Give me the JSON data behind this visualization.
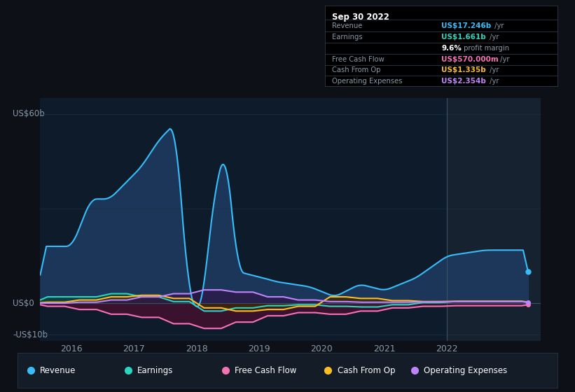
{
  "background_color": "#0d1117",
  "plot_bg_color": "#0d1b2a",
  "y_label_top": "US$60b",
  "y_label_zero": "US$0",
  "y_label_bottom": "-US$10b",
  "x_ticks": [
    "2016",
    "2017",
    "2018",
    "2019",
    "2020",
    "2021",
    "2022"
  ],
  "legend": [
    {
      "label": "Revenue",
      "color": "#38bdf8"
    },
    {
      "label": "Earnings",
      "color": "#2dd4bf"
    },
    {
      "label": "Free Cash Flow",
      "color": "#f472b6"
    },
    {
      "label": "Cash From Op",
      "color": "#fbbf24"
    },
    {
      "label": "Operating Expenses",
      "color": "#c084fc"
    }
  ],
  "info_box": {
    "date": "Sep 30 2022",
    "rows": [
      {
        "label": "Revenue",
        "value": "US$17.246b",
        "value_color": "#38bdf8",
        "suffix": " /yr"
      },
      {
        "label": "Earnings",
        "value": "US$1.661b",
        "value_color": "#2dd4bf",
        "suffix": " /yr"
      },
      {
        "label": "",
        "value": "9.6%",
        "value_color": "#ffffff",
        "suffix": " profit margin"
      },
      {
        "label": "Free Cash Flow",
        "value": "US$570.000m",
        "value_color": "#f472b6",
        "suffix": " /yr"
      },
      {
        "label": "Cash From Op",
        "value": "US$1.335b",
        "value_color": "#fbbf24",
        "suffix": " /yr"
      },
      {
        "label": "Operating Expenses",
        "value": "US$2.354b",
        "value_color": "#c084fc",
        "suffix": " /yr"
      }
    ]
  },
  "revenue_color": "#38bdf8",
  "revenue_fill_color": "#1e3a5f",
  "earnings_color": "#2dd4bf",
  "earnings_fill_color": "#0f4040",
  "free_cash_flow_color": "#f472b6",
  "free_cash_flow_fill_color": "#4a1030",
  "cash_from_op_color": "#fbbf24",
  "cash_from_op_fill_color": "#3d2800",
  "op_expenses_color": "#c084fc",
  "op_expenses_fill_color": "#2d1a4a",
  "shade_start_x": 2022.0,
  "x_min": 2015.5,
  "x_max": 2023.5,
  "y_min": -12,
  "y_max": 65
}
